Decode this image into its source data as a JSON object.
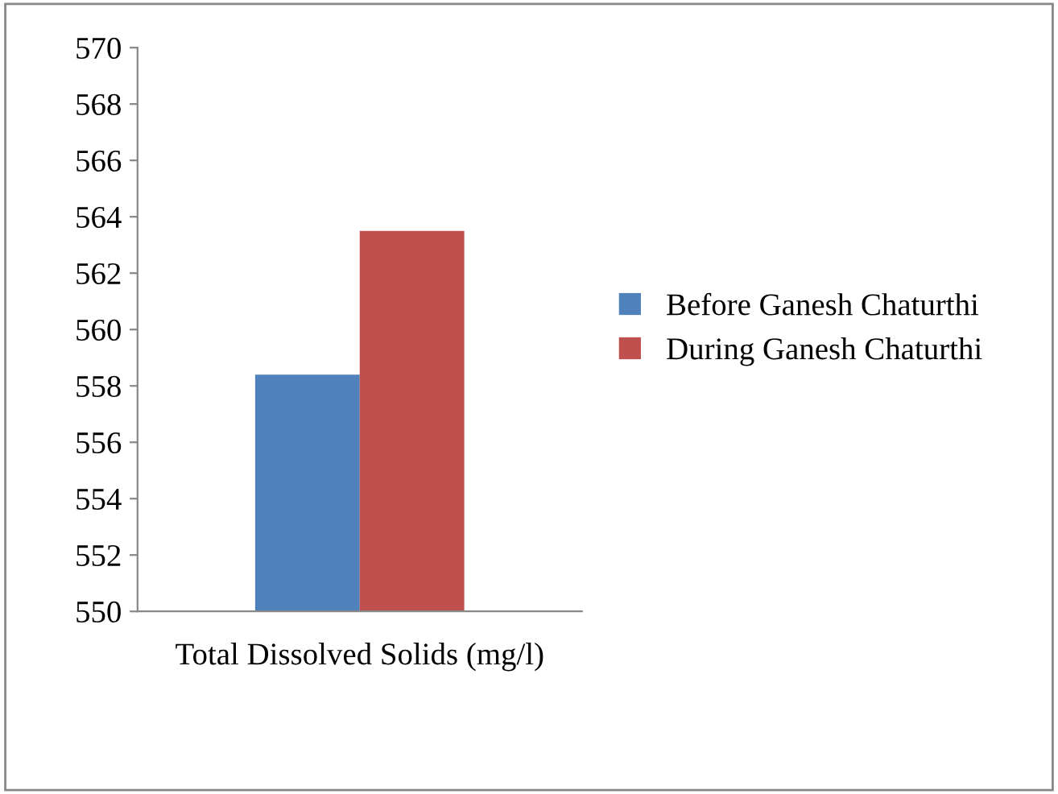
{
  "chart_data": {
    "type": "bar",
    "categories": [
      "Total Dissolved Solids (mg/l)"
    ],
    "series": [
      {
        "name": "Before Ganesh Chaturthi",
        "color": "#4f81bd",
        "values": [
          558.4
        ]
      },
      {
        "name": "During Ganesh Chaturthi",
        "color": "#c0504d",
        "values": [
          563.5
        ]
      }
    ],
    "ylim": [
      550,
      570
    ],
    "yticks": [
      550,
      552,
      554,
      556,
      558,
      560,
      562,
      564,
      566,
      568,
      570
    ],
    "grid": false,
    "legend": "right"
  }
}
